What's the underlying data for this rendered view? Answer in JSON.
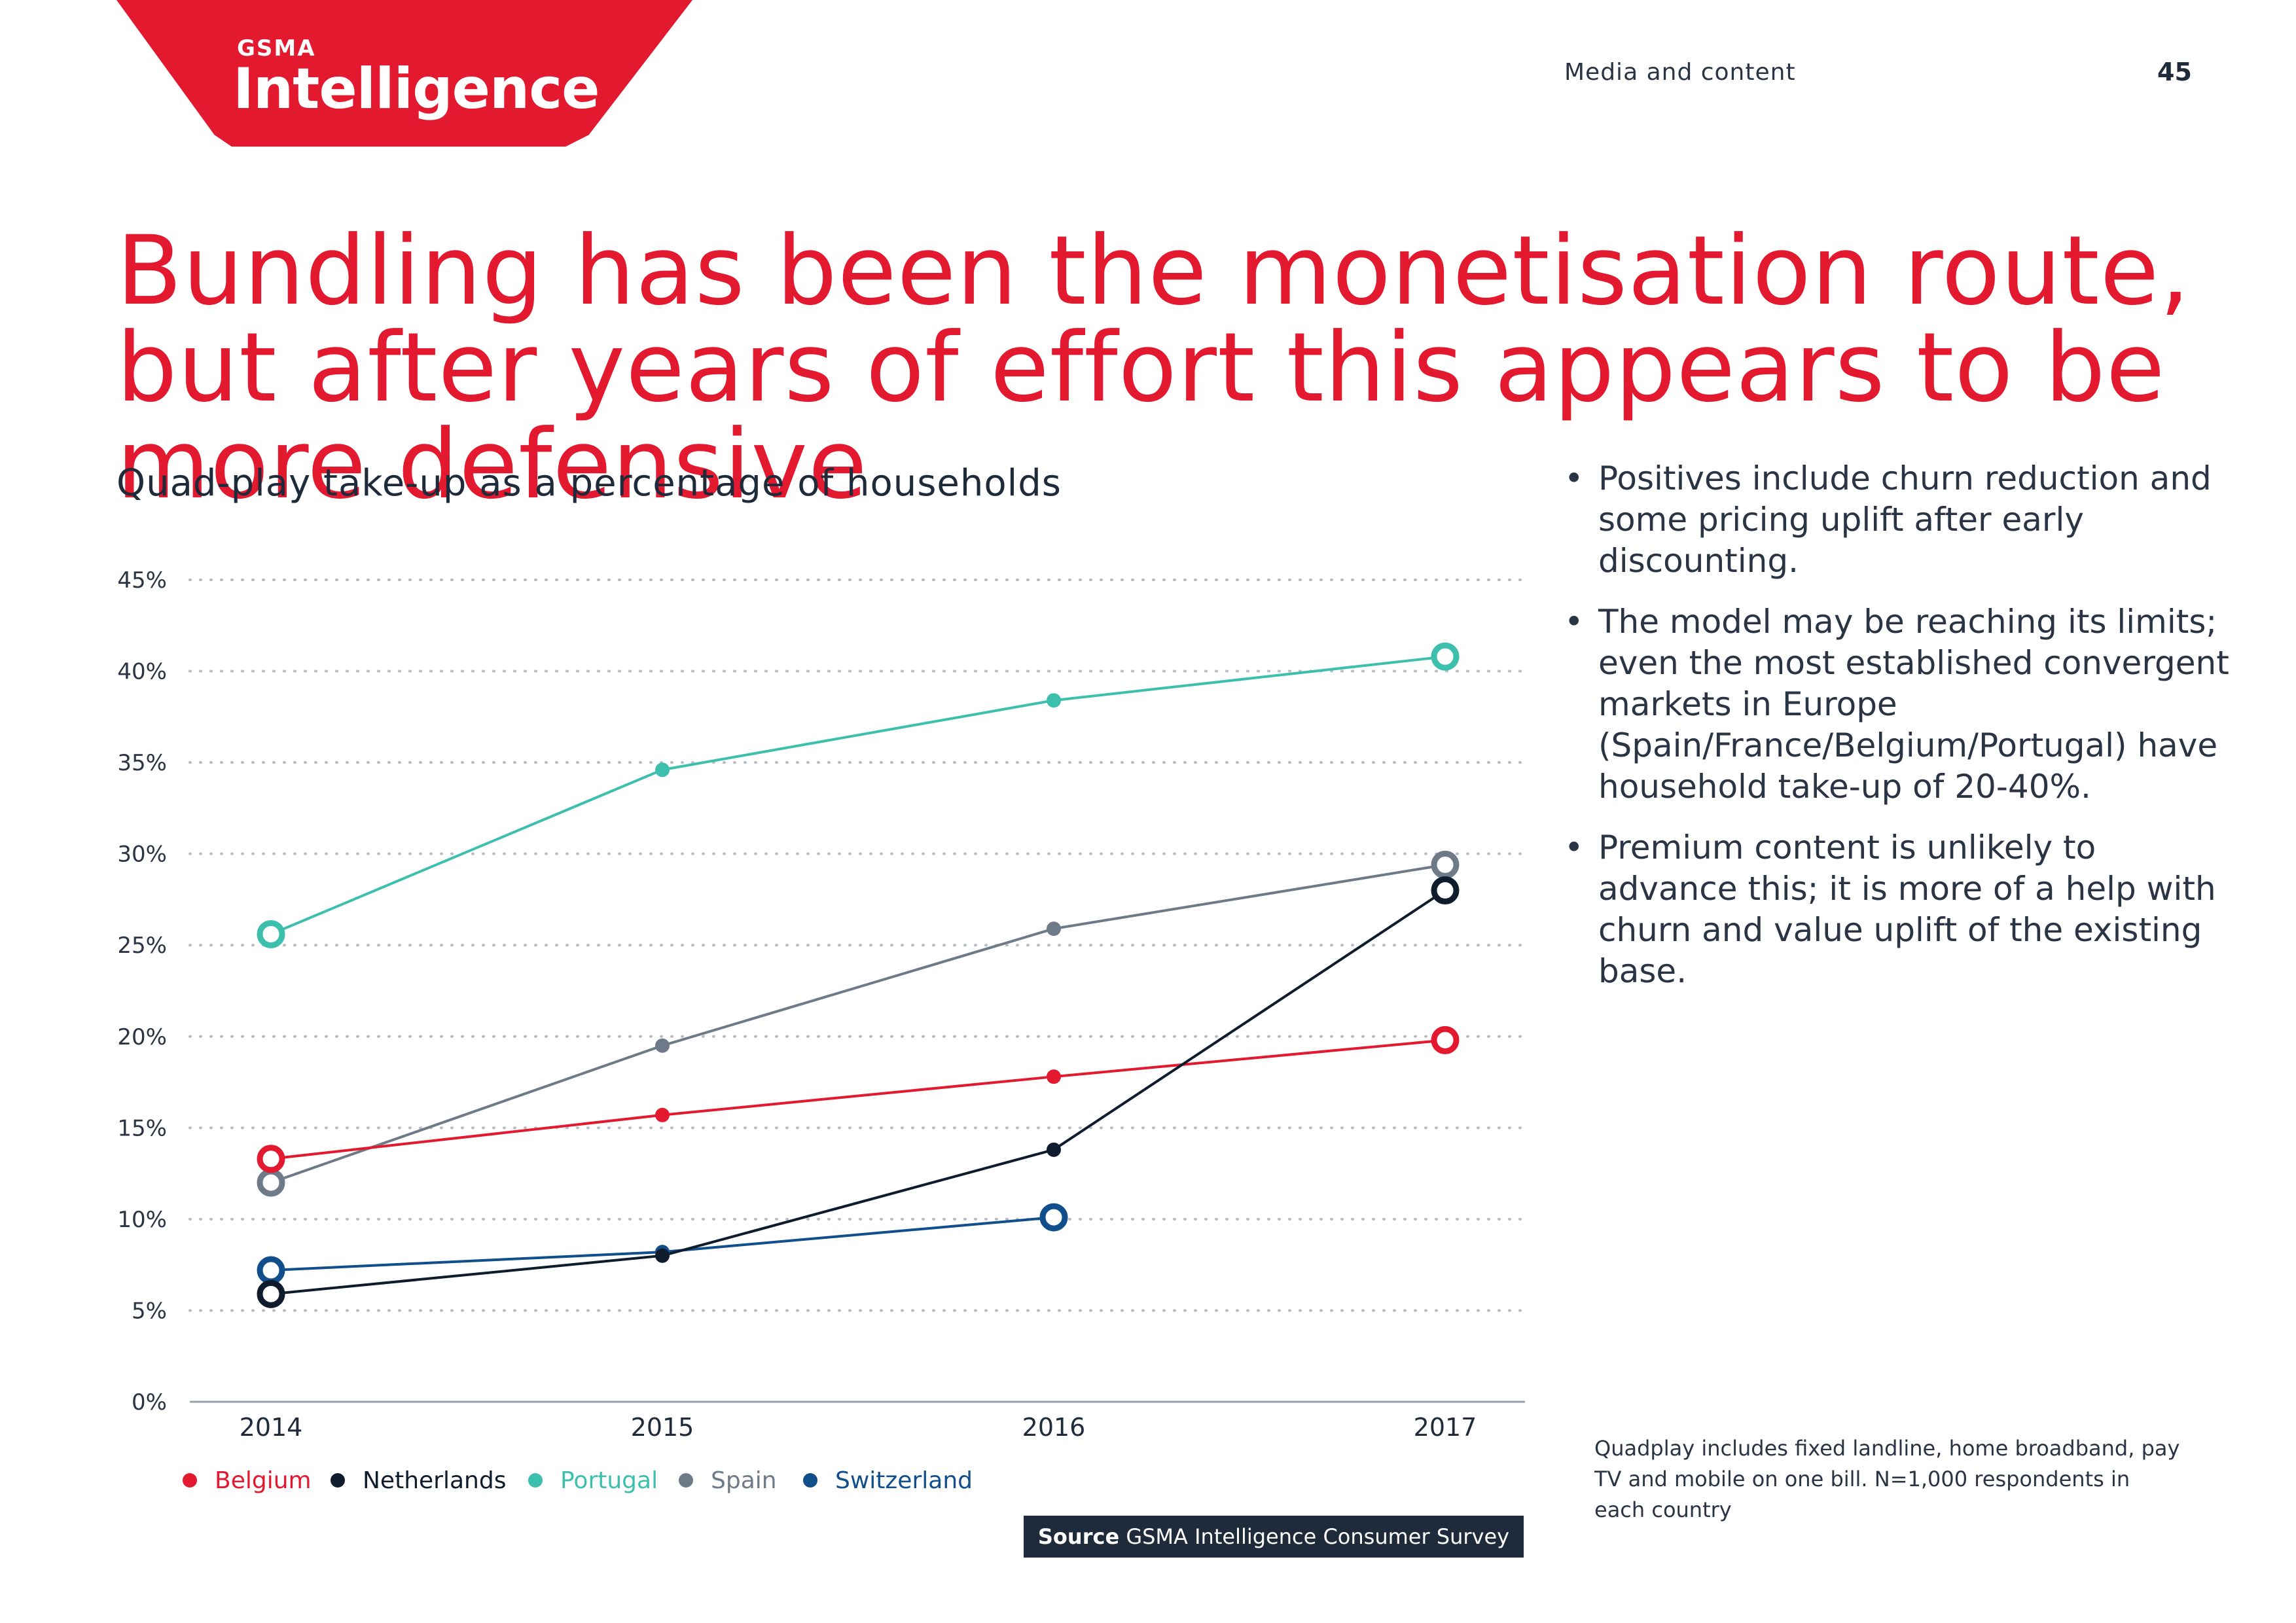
{
  "header": {
    "logo_top": "GSMA",
    "logo_main": "Intelligence",
    "section": "Media and content",
    "page_number": "45"
  },
  "headline": "Bundling has been the monetisation route, but after years of effort this appears to be more defensive",
  "bullets": [
    "Positives include churn reduction and some pricing uplift after early discounting.",
    "The model may be reaching its limits; even the most established convergent markets in Europe (Spain/France/Belgium/Portugal) have household take-up of 20-40%.",
    "Premium content is unlikely to advance this; it is more of a help with churn and value uplift of the existing base."
  ],
  "note": "Quadplay includes fixed landline, home broadband, pay TV and mobile on one bill. N=1,000 respondents in each country",
  "source": {
    "label": "Source",
    "text": "GSMA Intelligence Consumer Survey"
  },
  "chart_data": {
    "type": "line",
    "title": "Quad-play take-up as a percentage of households",
    "xlabel": "",
    "ylabel": "",
    "categories": [
      "2014",
      "2015",
      "2016",
      "2017"
    ],
    "ylim": [
      0,
      45
    ],
    "yticks": [
      "0%",
      "5%",
      "10%",
      "15%",
      "20%",
      "25%",
      "30%",
      "35%",
      "40%",
      "45%"
    ],
    "grid": true,
    "legend_position": "bottom-left",
    "series": [
      {
        "name": "Belgium",
        "color": "#e2192f",
        "values": [
          13.3,
          15.7,
          17.8,
          19.8
        ]
      },
      {
        "name": "Netherlands",
        "color": "#0f1c2e",
        "values": [
          5.9,
          8.0,
          13.8,
          28.0
        ]
      },
      {
        "name": "Portugal",
        "color": "#3dbfad",
        "values": [
          25.6,
          34.6,
          38.4,
          40.8
        ]
      },
      {
        "name": "Spain",
        "color": "#6f7a88",
        "values": [
          12.0,
          19.5,
          25.9,
          29.4
        ]
      },
      {
        "name": "Switzerland",
        "color": "#104f8c",
        "values": [
          7.2,
          8.2,
          10.1,
          null
        ]
      }
    ]
  }
}
